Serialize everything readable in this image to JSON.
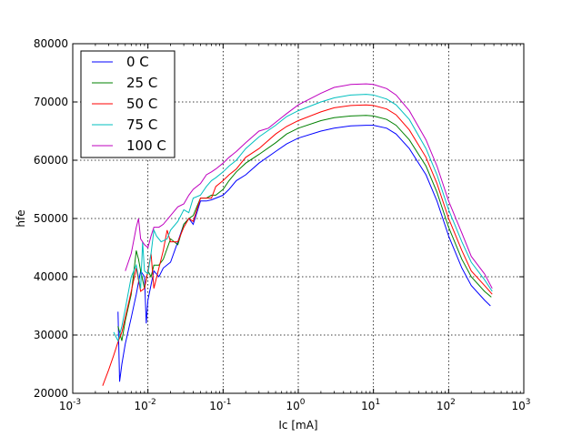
{
  "chart_data": {
    "type": "line",
    "xlabel": "Ic [mA]",
    "ylabel": "hfe",
    "xscale": "log",
    "xlim": [
      0.001,
      1000
    ],
    "ylim": [
      20000,
      80000
    ],
    "x_ticks": [
      {
        "base": "10",
        "exp": "-3"
      },
      {
        "base": "10",
        "exp": "-2"
      },
      {
        "base": "10",
        "exp": "-1"
      },
      {
        "base": "10",
        "exp": "0"
      },
      {
        "base": "10",
        "exp": "1"
      },
      {
        "base": "10",
        "exp": "2"
      },
      {
        "base": "10",
        "exp": "3"
      }
    ],
    "y_ticks": [
      "20000",
      "30000",
      "40000",
      "50000",
      "60000",
      "70000",
      "80000"
    ],
    "grid": true,
    "legend_position": "top-left",
    "series": [
      {
        "name": "0 C",
        "color": "#0000ff",
        "x": [
          0.004,
          0.0042,
          0.0045,
          0.005,
          0.006,
          0.007,
          0.008,
          0.009,
          0.0095,
          0.01,
          0.012,
          0.014,
          0.016,
          0.02,
          0.025,
          0.03,
          0.035,
          0.04,
          0.05,
          0.06,
          0.07,
          0.08,
          0.1,
          0.12,
          0.15,
          0.2,
          0.3,
          0.5,
          0.7,
          1,
          2,
          3,
          5,
          8,
          10,
          15,
          20,
          30,
          50,
          70,
          100,
          150,
          200,
          300,
          360
        ],
        "y": [
          34000,
          22000,
          25000,
          28500,
          33000,
          37000,
          41000,
          40000,
          32000,
          36000,
          41000,
          40000,
          41500,
          42500,
          46000,
          49000,
          50000,
          49000,
          53000,
          53000,
          53200,
          53500,
          54000,
          55000,
          56500,
          57500,
          59500,
          61500,
          62800,
          63800,
          65000,
          65500,
          65900,
          66000,
          66000,
          65500,
          64500,
          62000,
          57500,
          53000,
          47000,
          41500,
          38500,
          36000,
          35000
        ]
      },
      {
        "name": "25 C",
        "color": "#008000",
        "x": [
          0.004,
          0.0045,
          0.005,
          0.006,
          0.007,
          0.0075,
          0.008,
          0.009,
          0.01,
          0.011,
          0.012,
          0.014,
          0.016,
          0.02,
          0.025,
          0.03,
          0.035,
          0.04,
          0.05,
          0.06,
          0.07,
          0.08,
          0.1,
          0.12,
          0.15,
          0.2,
          0.3,
          0.5,
          0.7,
          1,
          2,
          3,
          5,
          8,
          10,
          15,
          20,
          30,
          50,
          70,
          100,
          150,
          200,
          300,
          370
        ],
        "y": [
          31500,
          29000,
          32500,
          37000,
          44500,
          43000,
          41000,
          38000,
          41000,
          40000,
          42000,
          42000,
          43000,
          46500,
          45500,
          49000,
          50000,
          50500,
          53500,
          53500,
          54000,
          54000,
          55000,
          56500,
          58000,
          59500,
          61000,
          63000,
          64500,
          65500,
          66800,
          67300,
          67600,
          67700,
          67600,
          67000,
          66000,
          63500,
          59000,
          54500,
          48500,
          43000,
          40000,
          37500,
          36500
        ]
      },
      {
        "name": "50 C",
        "color": "#ff0000",
        "x": [
          0.0025,
          0.003,
          0.0035,
          0.004,
          0.0045,
          0.005,
          0.006,
          0.007,
          0.008,
          0.009,
          0.01,
          0.011,
          0.012,
          0.014,
          0.016,
          0.018,
          0.02,
          0.025,
          0.03,
          0.035,
          0.04,
          0.05,
          0.06,
          0.07,
          0.08,
          0.1,
          0.12,
          0.15,
          0.2,
          0.3,
          0.5,
          0.7,
          1,
          2,
          3,
          5,
          8,
          10,
          15,
          20,
          30,
          50,
          70,
          100,
          150,
          200,
          300,
          380
        ],
        "y": [
          21300,
          24000,
          26500,
          28800,
          30500,
          33000,
          37500,
          41500,
          37500,
          38000,
          41000,
          44000,
          38000,
          41500,
          44500,
          48000,
          46000,
          46000,
          48500,
          50000,
          49500,
          53500,
          53500,
          53500,
          55500,
          56500,
          57500,
          58500,
          60500,
          62000,
          64500,
          65800,
          66800,
          68300,
          69000,
          69400,
          69500,
          69400,
          68800,
          67800,
          65200,
          60500,
          56000,
          50000,
          44500,
          41000,
          38500,
          37000
        ]
      },
      {
        "name": "75 C",
        "color": "#00bfbf",
        "x": [
          0.0035,
          0.004,
          0.0045,
          0.005,
          0.006,
          0.007,
          0.008,
          0.0085,
          0.009,
          0.01,
          0.011,
          0.012,
          0.013,
          0.015,
          0.018,
          0.02,
          0.025,
          0.03,
          0.035,
          0.04,
          0.05,
          0.06,
          0.07,
          0.08,
          0.1,
          0.12,
          0.15,
          0.2,
          0.3,
          0.5,
          0.7,
          1,
          2,
          3,
          5,
          8,
          10,
          15,
          20,
          30,
          50,
          70,
          100,
          150,
          200,
          300,
          380
        ],
        "y": [
          30500,
          29000,
          31500,
          34500,
          40000,
          42000,
          38000,
          46000,
          41000,
          40500,
          44000,
          48000,
          47000,
          46000,
          46500,
          48000,
          49500,
          51500,
          51000,
          53500,
          54000,
          55500,
          56500,
          57000,
          58000,
          59000,
          60000,
          62000,
          64000,
          66000,
          67500,
          68500,
          70000,
          70700,
          71200,
          71300,
          71200,
          70500,
          69500,
          67000,
          62000,
          57500,
          51500,
          46000,
          42500,
          39500,
          37500
        ]
      },
      {
        "name": "100 C",
        "color": "#bf00bf",
        "x": [
          0.005,
          0.006,
          0.007,
          0.0075,
          0.008,
          0.009,
          0.01,
          0.011,
          0.012,
          0.014,
          0.016,
          0.02,
          0.025,
          0.03,
          0.035,
          0.04,
          0.05,
          0.06,
          0.07,
          0.08,
          0.1,
          0.12,
          0.15,
          0.2,
          0.3,
          0.4,
          0.5,
          0.7,
          1,
          2,
          3,
          5,
          8,
          10,
          15,
          20,
          30,
          50,
          70,
          100,
          150,
          200,
          300,
          380
        ],
        "y": [
          41000,
          44000,
          48500,
          50000,
          46500,
          45500,
          45000,
          47000,
          48500,
          48500,
          49000,
          50500,
          52000,
          52500,
          54000,
          55000,
          56000,
          57500,
          58000,
          58500,
          59500,
          60500,
          61500,
          63000,
          65000,
          65500,
          66500,
          68000,
          69500,
          71500,
          72500,
          73000,
          73100,
          73000,
          72300,
          71200,
          68500,
          63500,
          59000,
          53000,
          47500,
          43500,
          40500,
          38000
        ]
      }
    ]
  }
}
